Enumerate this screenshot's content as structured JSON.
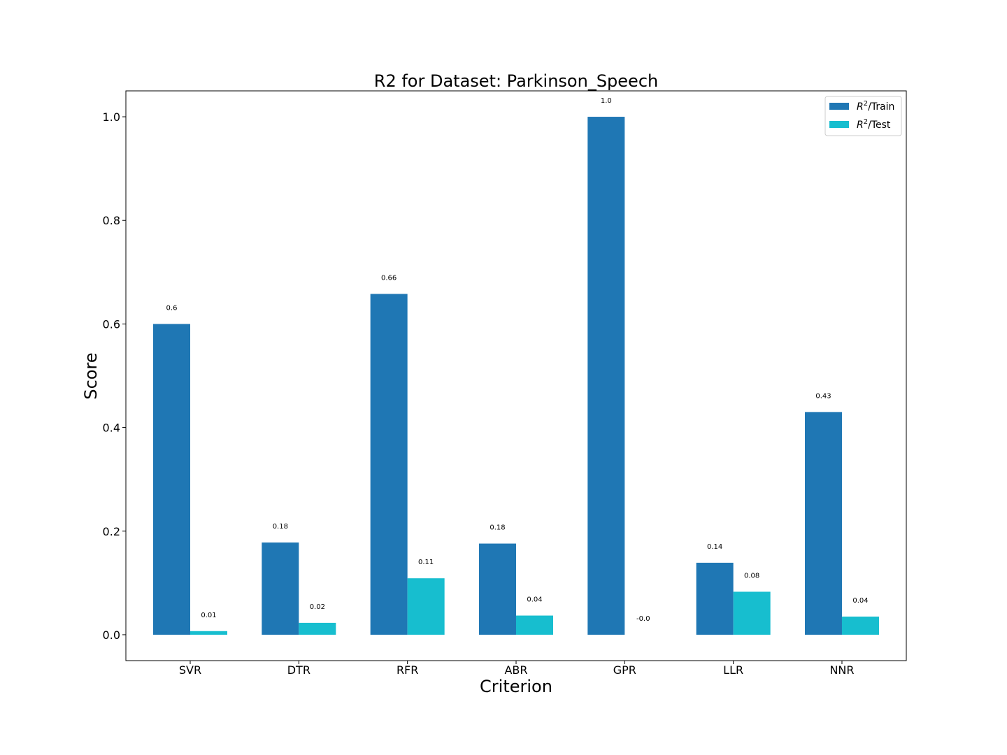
{
  "chart_data": {
    "type": "bar",
    "title": "R2 for Dataset: Parkinson_Speech",
    "xlabel": "Criterion",
    "ylabel": "Score",
    "categories": [
      "SVR",
      "DTR",
      "RFR",
      "ABR",
      "GPR",
      "LLR",
      "NNR"
    ],
    "series": [
      {
        "name": "R²/Train",
        "legend_base": "R",
        "legend_sup": "2",
        "legend_suffix": "/Train",
        "color": "#1f77b4",
        "values": [
          0.6,
          0.178,
          0.658,
          0.176,
          1.0,
          0.139,
          0.43
        ],
        "labels": [
          "0.6",
          "0.18",
          "0.66",
          "0.18",
          "1.0",
          "0.14",
          "0.43"
        ]
      },
      {
        "name": "R²/Test",
        "legend_base": "R",
        "legend_sup": "2",
        "legend_suffix": "/Test",
        "color": "#17becf",
        "values": [
          0.007,
          0.023,
          0.109,
          0.037,
          -0.0,
          0.083,
          0.035
        ],
        "labels": [
          "0.01",
          "0.02",
          "0.11",
          "0.04",
          "-0.0",
          "0.08",
          "0.04"
        ]
      }
    ],
    "ylim": [
      -0.05,
      1.05
    ],
    "yticks": [
      0.0,
      0.2,
      0.4,
      0.6,
      0.8,
      1.0
    ],
    "ytick_labels": [
      "0.0",
      "0.2",
      "0.4",
      "0.6",
      "0.8",
      "1.0"
    ],
    "grid": false,
    "legend_position": "top-right"
  }
}
